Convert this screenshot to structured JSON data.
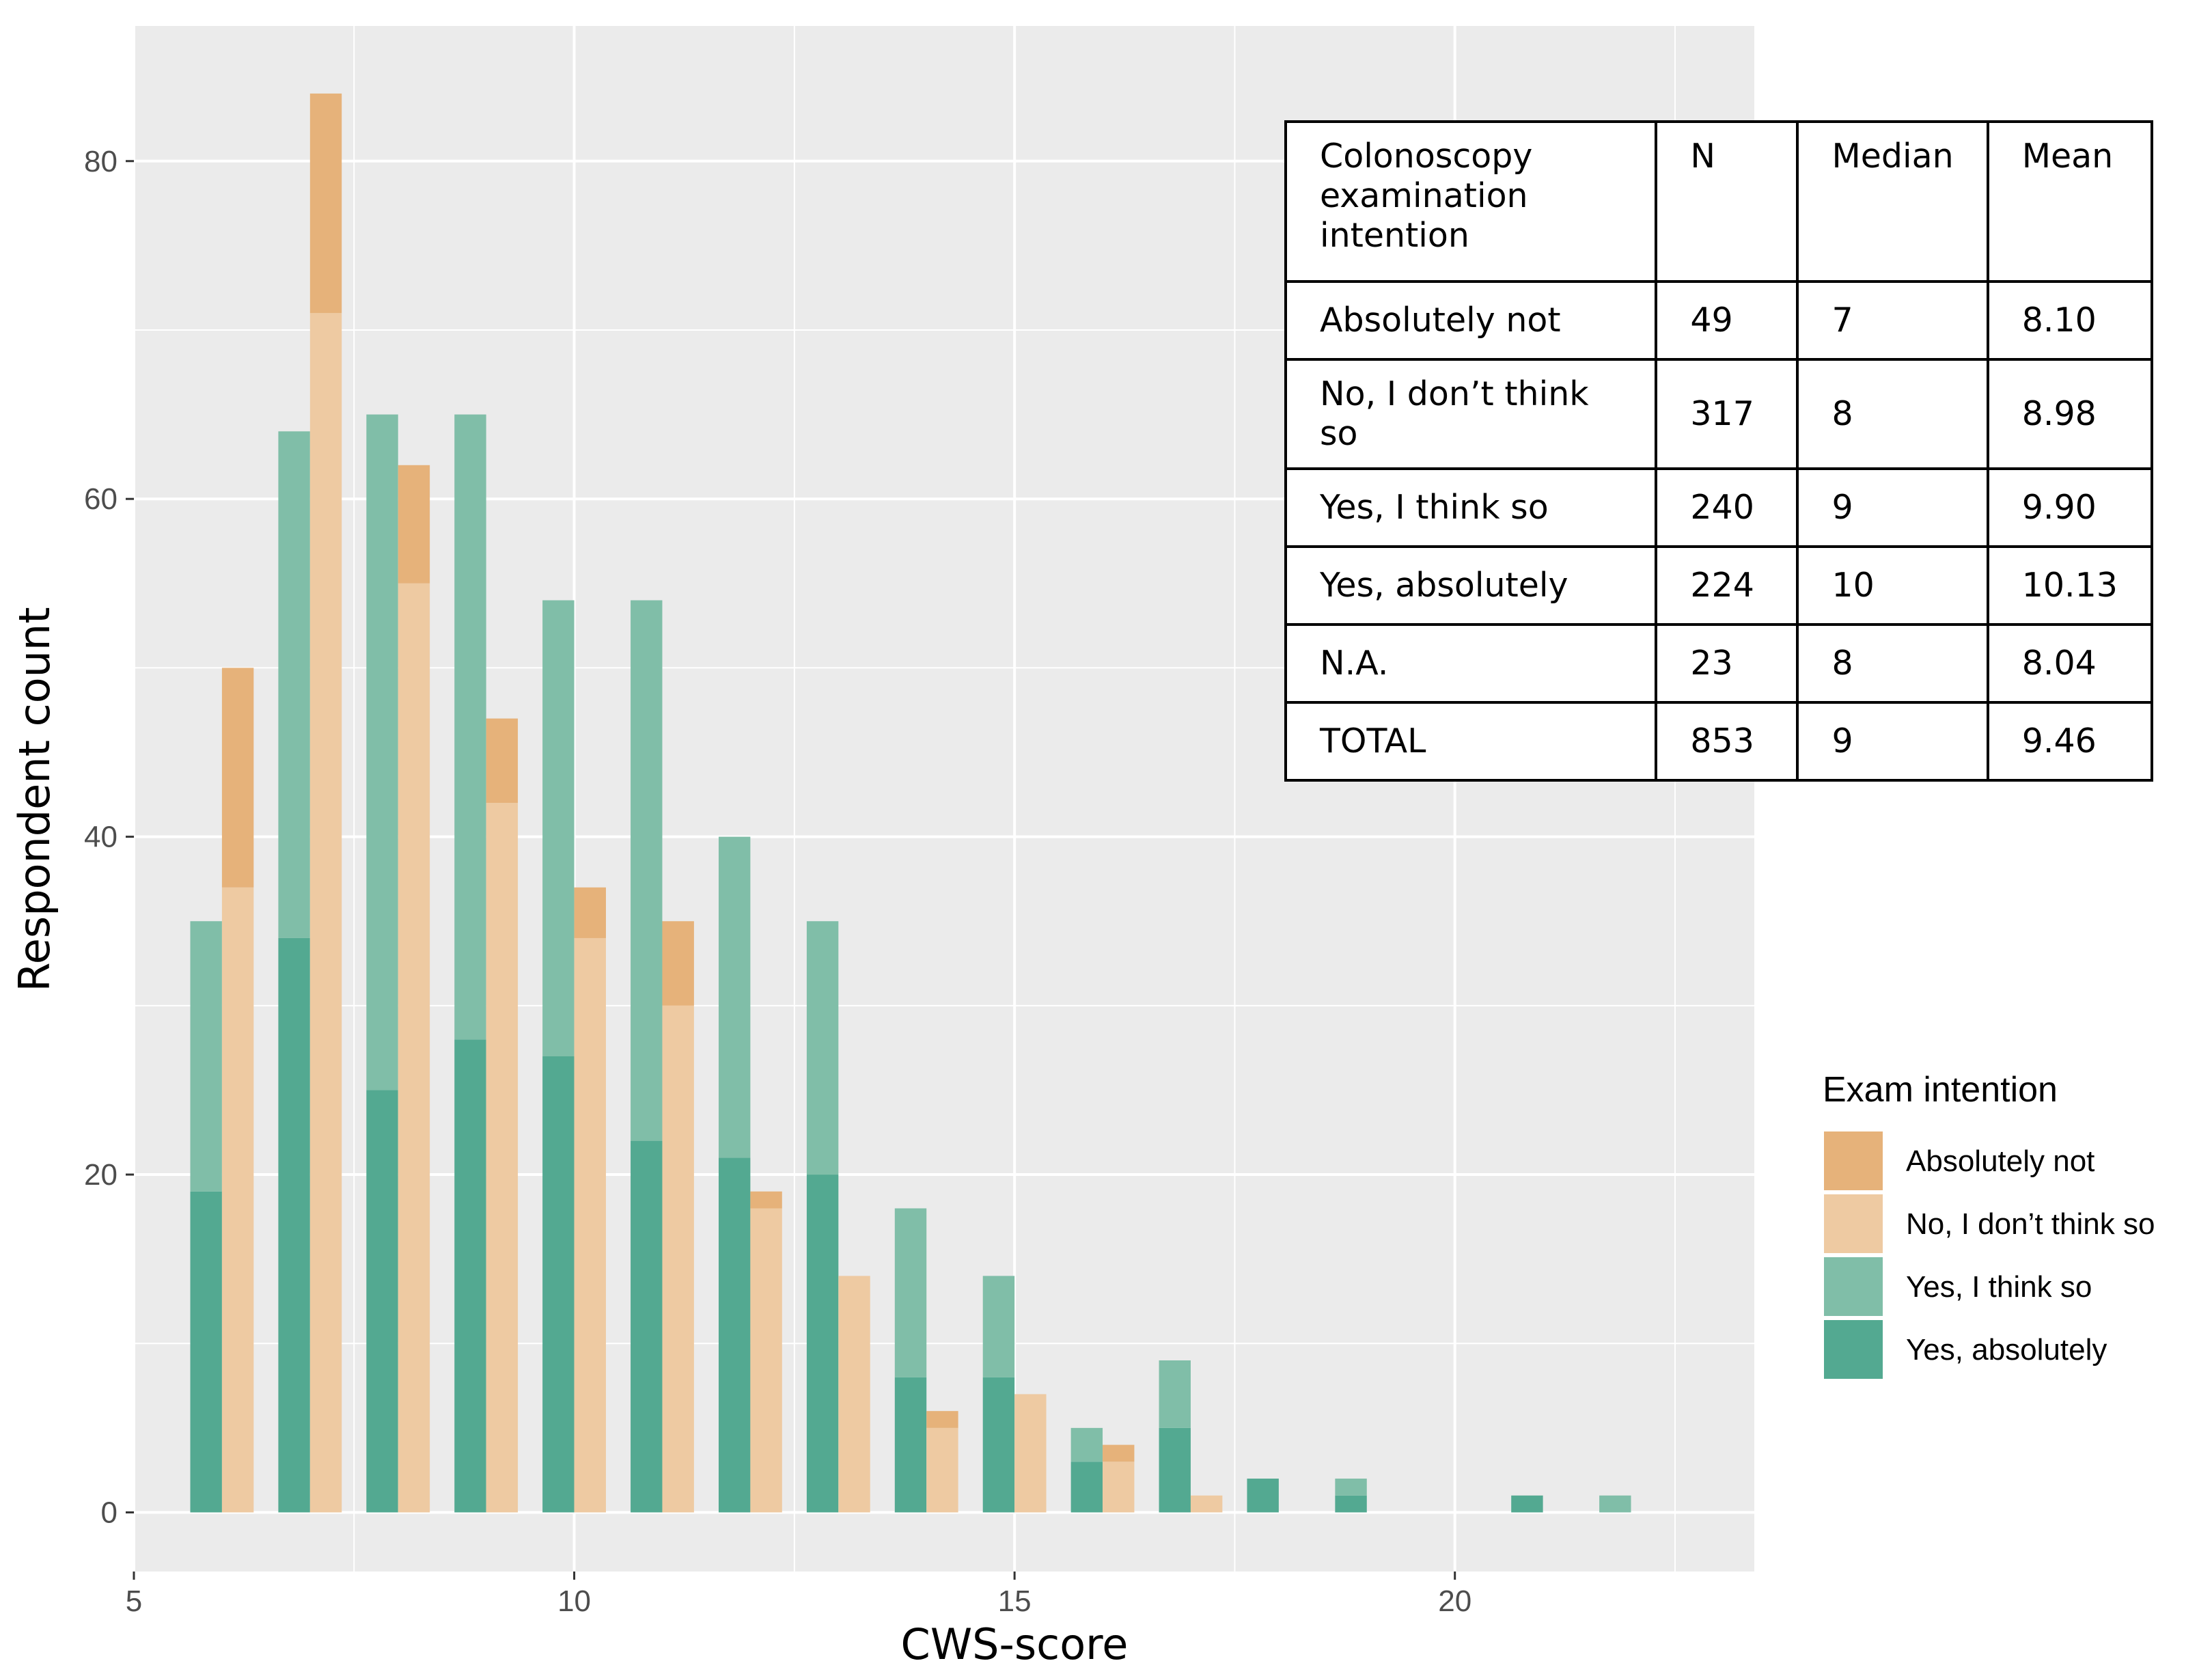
{
  "chart_data": {
    "type": "bar",
    "title": "",
    "xlabel": "CWS-score",
    "ylabel": "Respondent count",
    "xlim": [
      5,
      23.4
    ],
    "ylim": [
      -3.5,
      88
    ],
    "x_ticks": [
      5,
      10,
      15,
      20
    ],
    "y_ticks": [
      0,
      20,
      40,
      60,
      80
    ],
    "grid": true,
    "stacked_within_group": true,
    "legend": {
      "title": "Exam intention",
      "placement": "right",
      "entries": [
        "Absolutely not",
        "No, I don’t think so",
        "Yes, I think so",
        "Yes, absolutely"
      ]
    },
    "colors": {
      "Absolutely not": "#e6b27a",
      "No, I don’t think so": "#eecaa2",
      "Yes, I think so": "#80bea8",
      "Yes, absolutely": "#53a991",
      "panel_background": "#ebebeb",
      "grid": "#ffffff"
    },
    "x": [
      6,
      7,
      8,
      9,
      10,
      11,
      12,
      13,
      14,
      15,
      16,
      17,
      18,
      19,
      20,
      21,
      22
    ],
    "series": [
      {
        "name": "Yes, absolutely",
        "group": "yes",
        "values": [
          19,
          34,
          25,
          28,
          27,
          22,
          21,
          20,
          8,
          8,
          3,
          5,
          2,
          1,
          0,
          1,
          0
        ]
      },
      {
        "name": "Yes, I think so",
        "group": "yes",
        "values": [
          16,
          30,
          40,
          37,
          27,
          32,
          19,
          15,
          10,
          6,
          2,
          4,
          0,
          1,
          0,
          0,
          1
        ]
      },
      {
        "name": "No, I don’t think so",
        "group": "no",
        "values": [
          37,
          71,
          55,
          42,
          34,
          30,
          18,
          14,
          5,
          7,
          3,
          1,
          0,
          0,
          0,
          0,
          0
        ]
      },
      {
        "name": "Absolutely not",
        "group": "no",
        "values": [
          13,
          13,
          7,
          5,
          3,
          5,
          1,
          0,
          1,
          0,
          1,
          0,
          0,
          0,
          0,
          0,
          0
        ]
      }
    ]
  },
  "table": {
    "headers": [
      "Colonoscopy\nexamination\nintention",
      "N",
      "Median",
      "Mean"
    ],
    "rows": [
      [
        "Absolutely not",
        "49",
        "7",
        "8.10"
      ],
      [
        "No, I don’t think so",
        "317",
        "8",
        "8.98"
      ],
      [
        "Yes, I think so",
        "240",
        "9",
        "9.90"
      ],
      [
        "Yes, absolutely",
        "224",
        "10",
        "10.13"
      ],
      [
        "N.A.",
        "23",
        "8",
        "8.04"
      ],
      [
        "TOTAL",
        "853",
        "9",
        "9.46"
      ]
    ]
  }
}
